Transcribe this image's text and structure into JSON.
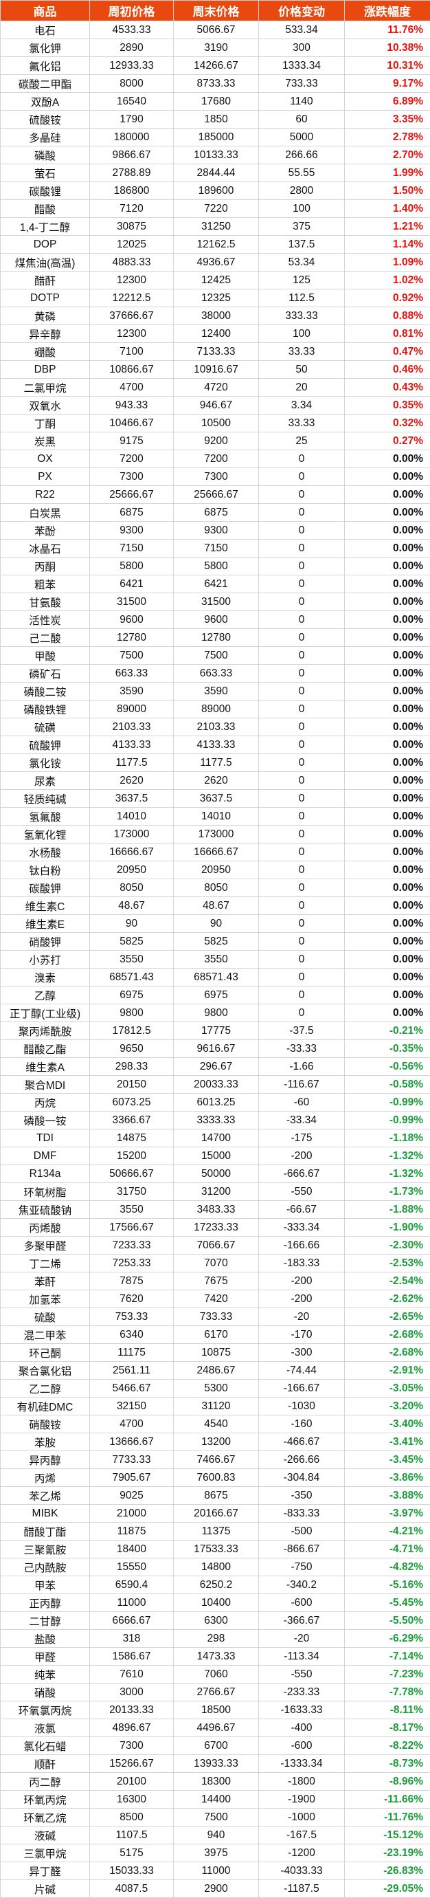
{
  "headers": [
    "商品",
    "周初价格",
    "周末价格",
    "价格变动",
    "涨跌幅度"
  ],
  "rows": [
    {
      "name": "电石",
      "start": "4533.33",
      "end": "5066.67",
      "change": "533.34",
      "pct": "11.76%",
      "dir": "up"
    },
    {
      "name": "氯化钾",
      "start": "2890",
      "end": "3190",
      "change": "300",
      "pct": "10.38%",
      "dir": "up"
    },
    {
      "name": "氟化铝",
      "start": "12933.33",
      "end": "14266.67",
      "change": "1333.34",
      "pct": "10.31%",
      "dir": "up"
    },
    {
      "name": "碳酸二甲酯",
      "start": "8000",
      "end": "8733.33",
      "change": "733.33",
      "pct": "9.17%",
      "dir": "up"
    },
    {
      "name": "双酚A",
      "start": "16540",
      "end": "17680",
      "change": "1140",
      "pct": "6.89%",
      "dir": "up"
    },
    {
      "name": "硫酸铵",
      "start": "1790",
      "end": "1850",
      "change": "60",
      "pct": "3.35%",
      "dir": "up"
    },
    {
      "name": "多晶硅",
      "start": "180000",
      "end": "185000",
      "change": "5000",
      "pct": "2.78%",
      "dir": "up"
    },
    {
      "name": "磷酸",
      "start": "9866.67",
      "end": "10133.33",
      "change": "266.66",
      "pct": "2.70%",
      "dir": "up"
    },
    {
      "name": "萤石",
      "start": "2788.89",
      "end": "2844.44",
      "change": "55.55",
      "pct": "1.99%",
      "dir": "up"
    },
    {
      "name": "碳酸锂",
      "start": "186800",
      "end": "189600",
      "change": "2800",
      "pct": "1.50%",
      "dir": "up"
    },
    {
      "name": "醋酸",
      "start": "7120",
      "end": "7220",
      "change": "100",
      "pct": "1.40%",
      "dir": "up"
    },
    {
      "name": "1,4-丁二醇",
      "start": "30875",
      "end": "31250",
      "change": "375",
      "pct": "1.21%",
      "dir": "up"
    },
    {
      "name": "DOP",
      "start": "12025",
      "end": "12162.5",
      "change": "137.5",
      "pct": "1.14%",
      "dir": "up"
    },
    {
      "name": "煤焦油(高温)",
      "start": "4883.33",
      "end": "4936.67",
      "change": "53.34",
      "pct": "1.09%",
      "dir": "up"
    },
    {
      "name": "醋酐",
      "start": "12300",
      "end": "12425",
      "change": "125",
      "pct": "1.02%",
      "dir": "up"
    },
    {
      "name": "DOTP",
      "start": "12212.5",
      "end": "12325",
      "change": "112.5",
      "pct": "0.92%",
      "dir": "up"
    },
    {
      "name": "黄磷",
      "start": "37666.67",
      "end": "38000",
      "change": "333.33",
      "pct": "0.88%",
      "dir": "up"
    },
    {
      "name": "异辛醇",
      "start": "12300",
      "end": "12400",
      "change": "100",
      "pct": "0.81%",
      "dir": "up"
    },
    {
      "name": "硼酸",
      "start": "7100",
      "end": "7133.33",
      "change": "33.33",
      "pct": "0.47%",
      "dir": "up"
    },
    {
      "name": "DBP",
      "start": "10866.67",
      "end": "10916.67",
      "change": "50",
      "pct": "0.46%",
      "dir": "up"
    },
    {
      "name": "二氯甲烷",
      "start": "4700",
      "end": "4720",
      "change": "20",
      "pct": "0.43%",
      "dir": "up"
    },
    {
      "name": "双氧水",
      "start": "943.33",
      "end": "946.67",
      "change": "3.34",
      "pct": "0.35%",
      "dir": "up"
    },
    {
      "name": "丁酮",
      "start": "10466.67",
      "end": "10500",
      "change": "33.33",
      "pct": "0.32%",
      "dir": "up"
    },
    {
      "name": "炭黑",
      "start": "9175",
      "end": "9200",
      "change": "25",
      "pct": "0.27%",
      "dir": "up"
    },
    {
      "name": "OX",
      "start": "7200",
      "end": "7200",
      "change": "0",
      "pct": "0.00%",
      "dir": "flat"
    },
    {
      "name": "PX",
      "start": "7300",
      "end": "7300",
      "change": "0",
      "pct": "0.00%",
      "dir": "flat"
    },
    {
      "name": "R22",
      "start": "25666.67",
      "end": "25666.67",
      "change": "0",
      "pct": "0.00%",
      "dir": "flat"
    },
    {
      "name": "白炭黑",
      "start": "6875",
      "end": "6875",
      "change": "0",
      "pct": "0.00%",
      "dir": "flat"
    },
    {
      "name": "苯酚",
      "start": "9300",
      "end": "9300",
      "change": "0",
      "pct": "0.00%",
      "dir": "flat"
    },
    {
      "name": "冰晶石",
      "start": "7150",
      "end": "7150",
      "change": "0",
      "pct": "0.00%",
      "dir": "flat"
    },
    {
      "name": "丙酮",
      "start": "5800",
      "end": "5800",
      "change": "0",
      "pct": "0.00%",
      "dir": "flat"
    },
    {
      "name": "粗苯",
      "start": "6421",
      "end": "6421",
      "change": "0",
      "pct": "0.00%",
      "dir": "flat"
    },
    {
      "name": "甘氨酸",
      "start": "31500",
      "end": "31500",
      "change": "0",
      "pct": "0.00%",
      "dir": "flat"
    },
    {
      "name": "活性炭",
      "start": "9600",
      "end": "9600",
      "change": "0",
      "pct": "0.00%",
      "dir": "flat"
    },
    {
      "name": "己二酸",
      "start": "12780",
      "end": "12780",
      "change": "0",
      "pct": "0.00%",
      "dir": "flat"
    },
    {
      "name": "甲酸",
      "start": "7500",
      "end": "7500",
      "change": "0",
      "pct": "0.00%",
      "dir": "flat"
    },
    {
      "name": "磷矿石",
      "start": "663.33",
      "end": "663.33",
      "change": "0",
      "pct": "0.00%",
      "dir": "flat"
    },
    {
      "name": "磷酸二铵",
      "start": "3590",
      "end": "3590",
      "change": "0",
      "pct": "0.00%",
      "dir": "flat"
    },
    {
      "name": "磷酸铁锂",
      "start": "89000",
      "end": "89000",
      "change": "0",
      "pct": "0.00%",
      "dir": "flat"
    },
    {
      "name": "硫磺",
      "start": "2103.33",
      "end": "2103.33",
      "change": "0",
      "pct": "0.00%",
      "dir": "flat"
    },
    {
      "name": "硫酸钾",
      "start": "4133.33",
      "end": "4133.33",
      "change": "0",
      "pct": "0.00%",
      "dir": "flat"
    },
    {
      "name": "氯化铵",
      "start": "1177.5",
      "end": "1177.5",
      "change": "0",
      "pct": "0.00%",
      "dir": "flat"
    },
    {
      "name": "尿素",
      "start": "2620",
      "end": "2620",
      "change": "0",
      "pct": "0.00%",
      "dir": "flat"
    },
    {
      "name": "轻质纯碱",
      "start": "3637.5",
      "end": "3637.5",
      "change": "0",
      "pct": "0.00%",
      "dir": "flat"
    },
    {
      "name": "氢氟酸",
      "start": "14010",
      "end": "14010",
      "change": "0",
      "pct": "0.00%",
      "dir": "flat"
    },
    {
      "name": "氢氧化锂",
      "start": "173000",
      "end": "173000",
      "change": "0",
      "pct": "0.00%",
      "dir": "flat"
    },
    {
      "name": "水杨酸",
      "start": "16666.67",
      "end": "16666.67",
      "change": "0",
      "pct": "0.00%",
      "dir": "flat"
    },
    {
      "name": "钛白粉",
      "start": "20950",
      "end": "20950",
      "change": "0",
      "pct": "0.00%",
      "dir": "flat"
    },
    {
      "name": "碳酸钾",
      "start": "8050",
      "end": "8050",
      "change": "0",
      "pct": "0.00%",
      "dir": "flat"
    },
    {
      "name": "维生素C",
      "start": "48.67",
      "end": "48.67",
      "change": "0",
      "pct": "0.00%",
      "dir": "flat"
    },
    {
      "name": "维生素E",
      "start": "90",
      "end": "90",
      "change": "0",
      "pct": "0.00%",
      "dir": "flat"
    },
    {
      "name": "硝酸钾",
      "start": "5825",
      "end": "5825",
      "change": "0",
      "pct": "0.00%",
      "dir": "flat"
    },
    {
      "name": "小苏打",
      "start": "3550",
      "end": "3550",
      "change": "0",
      "pct": "0.00%",
      "dir": "flat"
    },
    {
      "name": "溴素",
      "start": "68571.43",
      "end": "68571.43",
      "change": "0",
      "pct": "0.00%",
      "dir": "flat"
    },
    {
      "name": "乙醇",
      "start": "6975",
      "end": "6975",
      "change": "0",
      "pct": "0.00%",
      "dir": "flat"
    },
    {
      "name": "正丁醇(工业级)",
      "start": "9800",
      "end": "9800",
      "change": "0",
      "pct": "0.00%",
      "dir": "flat"
    },
    {
      "name": "聚丙烯酰胺",
      "start": "17812.5",
      "end": "17775",
      "change": "-37.5",
      "pct": "-0.21%",
      "dir": "down"
    },
    {
      "name": "醋酸乙酯",
      "start": "9650",
      "end": "9616.67",
      "change": "-33.33",
      "pct": "-0.35%",
      "dir": "down"
    },
    {
      "name": "维生素A",
      "start": "298.33",
      "end": "296.67",
      "change": "-1.66",
      "pct": "-0.56%",
      "dir": "down"
    },
    {
      "name": "聚合MDI",
      "start": "20150",
      "end": "20033.33",
      "change": "-116.67",
      "pct": "-0.58%",
      "dir": "down"
    },
    {
      "name": "丙烷",
      "start": "6073.25",
      "end": "6013.25",
      "change": "-60",
      "pct": "-0.99%",
      "dir": "down"
    },
    {
      "name": "磷酸一铵",
      "start": "3366.67",
      "end": "3333.33",
      "change": "-33.34",
      "pct": "-0.99%",
      "dir": "down"
    },
    {
      "name": "TDI",
      "start": "14875",
      "end": "14700",
      "change": "-175",
      "pct": "-1.18%",
      "dir": "down"
    },
    {
      "name": "DMF",
      "start": "15200",
      "end": "15000",
      "change": "-200",
      "pct": "-1.32%",
      "dir": "down"
    },
    {
      "name": "R134a",
      "start": "50666.67",
      "end": "50000",
      "change": "-666.67",
      "pct": "-1.32%",
      "dir": "down"
    },
    {
      "name": "环氧树脂",
      "start": "31750",
      "end": "31200",
      "change": "-550",
      "pct": "-1.73%",
      "dir": "down"
    },
    {
      "name": "焦亚硫酸钠",
      "start": "3550",
      "end": "3483.33",
      "change": "-66.67",
      "pct": "-1.88%",
      "dir": "down"
    },
    {
      "name": "丙烯酸",
      "start": "17566.67",
      "end": "17233.33",
      "change": "-333.34",
      "pct": "-1.90%",
      "dir": "down"
    },
    {
      "name": "多聚甲醛",
      "start": "7233.33",
      "end": "7066.67",
      "change": "-166.66",
      "pct": "-2.30%",
      "dir": "down"
    },
    {
      "name": "丁二烯",
      "start": "7253.33",
      "end": "7070",
      "change": "-183.33",
      "pct": "-2.53%",
      "dir": "down"
    },
    {
      "name": "苯酐",
      "start": "7875",
      "end": "7675",
      "change": "-200",
      "pct": "-2.54%",
      "dir": "down"
    },
    {
      "name": "加氢苯",
      "start": "7620",
      "end": "7420",
      "change": "-200",
      "pct": "-2.62%",
      "dir": "down"
    },
    {
      "name": "硫酸",
      "start": "753.33",
      "end": "733.33",
      "change": "-20",
      "pct": "-2.65%",
      "dir": "down"
    },
    {
      "name": "混二甲苯",
      "start": "6340",
      "end": "6170",
      "change": "-170",
      "pct": "-2.68%",
      "dir": "down"
    },
    {
      "name": "环己酮",
      "start": "11175",
      "end": "10875",
      "change": "-300",
      "pct": "-2.68%",
      "dir": "down"
    },
    {
      "name": "聚合氯化铝",
      "start": "2561.11",
      "end": "2486.67",
      "change": "-74.44",
      "pct": "-2.91%",
      "dir": "down"
    },
    {
      "name": "乙二醇",
      "start": "5466.67",
      "end": "5300",
      "change": "-166.67",
      "pct": "-3.05%",
      "dir": "down"
    },
    {
      "name": "有机硅DMC",
      "start": "32150",
      "end": "31120",
      "change": "-1030",
      "pct": "-3.20%",
      "dir": "down"
    },
    {
      "name": "硝酸铵",
      "start": "4700",
      "end": "4540",
      "change": "-160",
      "pct": "-3.40%",
      "dir": "down"
    },
    {
      "name": "苯胺",
      "start": "13666.67",
      "end": "13200",
      "change": "-466.67",
      "pct": "-3.41%",
      "dir": "down"
    },
    {
      "name": "异丙醇",
      "start": "7733.33",
      "end": "7466.67",
      "change": "-266.66",
      "pct": "-3.45%",
      "dir": "down"
    },
    {
      "name": "丙烯",
      "start": "7905.67",
      "end": "7600.83",
      "change": "-304.84",
      "pct": "-3.86%",
      "dir": "down"
    },
    {
      "name": "苯乙烯",
      "start": "9025",
      "end": "8675",
      "change": "-350",
      "pct": "-3.88%",
      "dir": "down"
    },
    {
      "name": "MIBK",
      "start": "21000",
      "end": "20166.67",
      "change": "-833.33",
      "pct": "-3.97%",
      "dir": "down"
    },
    {
      "name": "醋酸丁酯",
      "start": "11875",
      "end": "11375",
      "change": "-500",
      "pct": "-4.21%",
      "dir": "down"
    },
    {
      "name": "三聚氰胺",
      "start": "18400",
      "end": "17533.33",
      "change": "-866.67",
      "pct": "-4.71%",
      "dir": "down"
    },
    {
      "name": "己内酰胺",
      "start": "15550",
      "end": "14800",
      "change": "-750",
      "pct": "-4.82%",
      "dir": "down"
    },
    {
      "name": "甲苯",
      "start": "6590.4",
      "end": "6250.2",
      "change": "-340.2",
      "pct": "-5.16%",
      "dir": "down"
    },
    {
      "name": "正丙醇",
      "start": "11000",
      "end": "10400",
      "change": "-600",
      "pct": "-5.45%",
      "dir": "down"
    },
    {
      "name": "二甘醇",
      "start": "6666.67",
      "end": "6300",
      "change": "-366.67",
      "pct": "-5.50%",
      "dir": "down"
    },
    {
      "name": "盐酸",
      "start": "318",
      "end": "298",
      "change": "-20",
      "pct": "-6.29%",
      "dir": "down"
    },
    {
      "name": "甲醛",
      "start": "1586.67",
      "end": "1473.33",
      "change": "-113.34",
      "pct": "-7.14%",
      "dir": "down"
    },
    {
      "name": "纯苯",
      "start": "7610",
      "end": "7060",
      "change": "-550",
      "pct": "-7.23%",
      "dir": "down"
    },
    {
      "name": "硝酸",
      "start": "3000",
      "end": "2766.67",
      "change": "-233.33",
      "pct": "-7.78%",
      "dir": "down"
    },
    {
      "name": "环氧氯丙烷",
      "start": "20133.33",
      "end": "18500",
      "change": "-1633.33",
      "pct": "-8.11%",
      "dir": "down"
    },
    {
      "name": "液氯",
      "start": "4896.67",
      "end": "4496.67",
      "change": "-400",
      "pct": "-8.17%",
      "dir": "down"
    },
    {
      "name": "氯化石蜡",
      "start": "7300",
      "end": "6700",
      "change": "-600",
      "pct": "-8.22%",
      "dir": "down"
    },
    {
      "name": "顺酐",
      "start": "15266.67",
      "end": "13933.33",
      "change": "-1333.34",
      "pct": "-8.73%",
      "dir": "down"
    },
    {
      "name": "丙二醇",
      "start": "20100",
      "end": "18300",
      "change": "-1800",
      "pct": "-8.96%",
      "dir": "down"
    },
    {
      "name": "环氧丙烷",
      "start": "16300",
      "end": "14400",
      "change": "-1900",
      "pct": "-11.66%",
      "dir": "down"
    },
    {
      "name": "环氧乙烷",
      "start": "8500",
      "end": "7500",
      "change": "-1000",
      "pct": "-11.76%",
      "dir": "down"
    },
    {
      "name": "液碱",
      "start": "1107.5",
      "end": "940",
      "change": "-167.5",
      "pct": "-15.12%",
      "dir": "down"
    },
    {
      "name": "三氯甲烷",
      "start": "5175",
      "end": "3975",
      "change": "-1200",
      "pct": "-23.19%",
      "dir": "down"
    },
    {
      "name": "异丁醛",
      "start": "15033.33",
      "end": "11000",
      "change": "-4033.33",
      "pct": "-26.83%",
      "dir": "down"
    },
    {
      "name": "片碱",
      "start": "4087.5",
      "end": "2900",
      "change": "-1187.5",
      "pct": "-29.05%",
      "dir": "down"
    }
  ]
}
